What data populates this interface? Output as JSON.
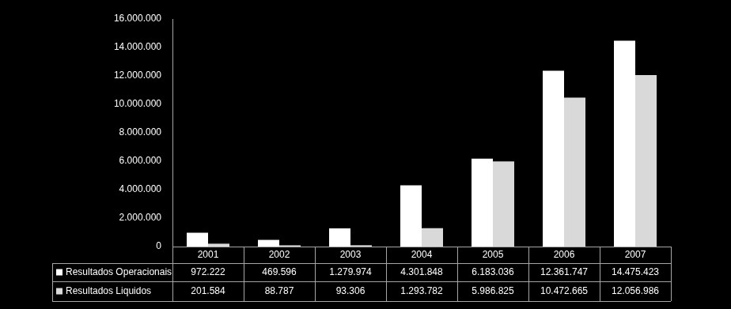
{
  "chart_data": {
    "type": "bar",
    "categories": [
      "2001",
      "2002",
      "2003",
      "2004",
      "2005",
      "2006",
      "2007"
    ],
    "series": [
      {
        "name": "Resultados Operacionais",
        "color": "#ffffff",
        "values": [
          972222,
          469596,
          1279974,
          4301848,
          6183036,
          12361747,
          14475423
        ],
        "value_labels": [
          "972.222",
          "469.596",
          "1.279.974",
          "4.301.848",
          "6.183.036",
          "12.361.747",
          "14.475.423"
        ]
      },
      {
        "name": "Resultados Liquidos",
        "color": "#d9d9d9",
        "values": [
          201584,
          88787,
          93306,
          1293782,
          5986825,
          10472665,
          12056986
        ],
        "value_labels": [
          "201.584",
          "88.787",
          "93.306",
          "1.293.782",
          "5.986.825",
          "10.472.665",
          "12.056.986"
        ]
      }
    ],
    "ylim": [
      0,
      16000000
    ],
    "yticks": [
      0,
      {
        "value": 2000000,
        "label": "2.000.000"
      },
      {
        "value": 4000000,
        "label": "4.000.000"
      },
      {
        "value": 6000000,
        "label": "6.000.000"
      },
      {
        "value": 8000000,
        "label": "8.000.000"
      },
      {
        "value": 10000000,
        "label": "10.000.000"
      },
      {
        "value": 12000000,
        "label": "12.000.000"
      },
      {
        "value": 14000000,
        "label": "14.000.000"
      },
      {
        "value": 16000000,
        "label": "16.000.000"
      }
    ],
    "grid": false
  }
}
